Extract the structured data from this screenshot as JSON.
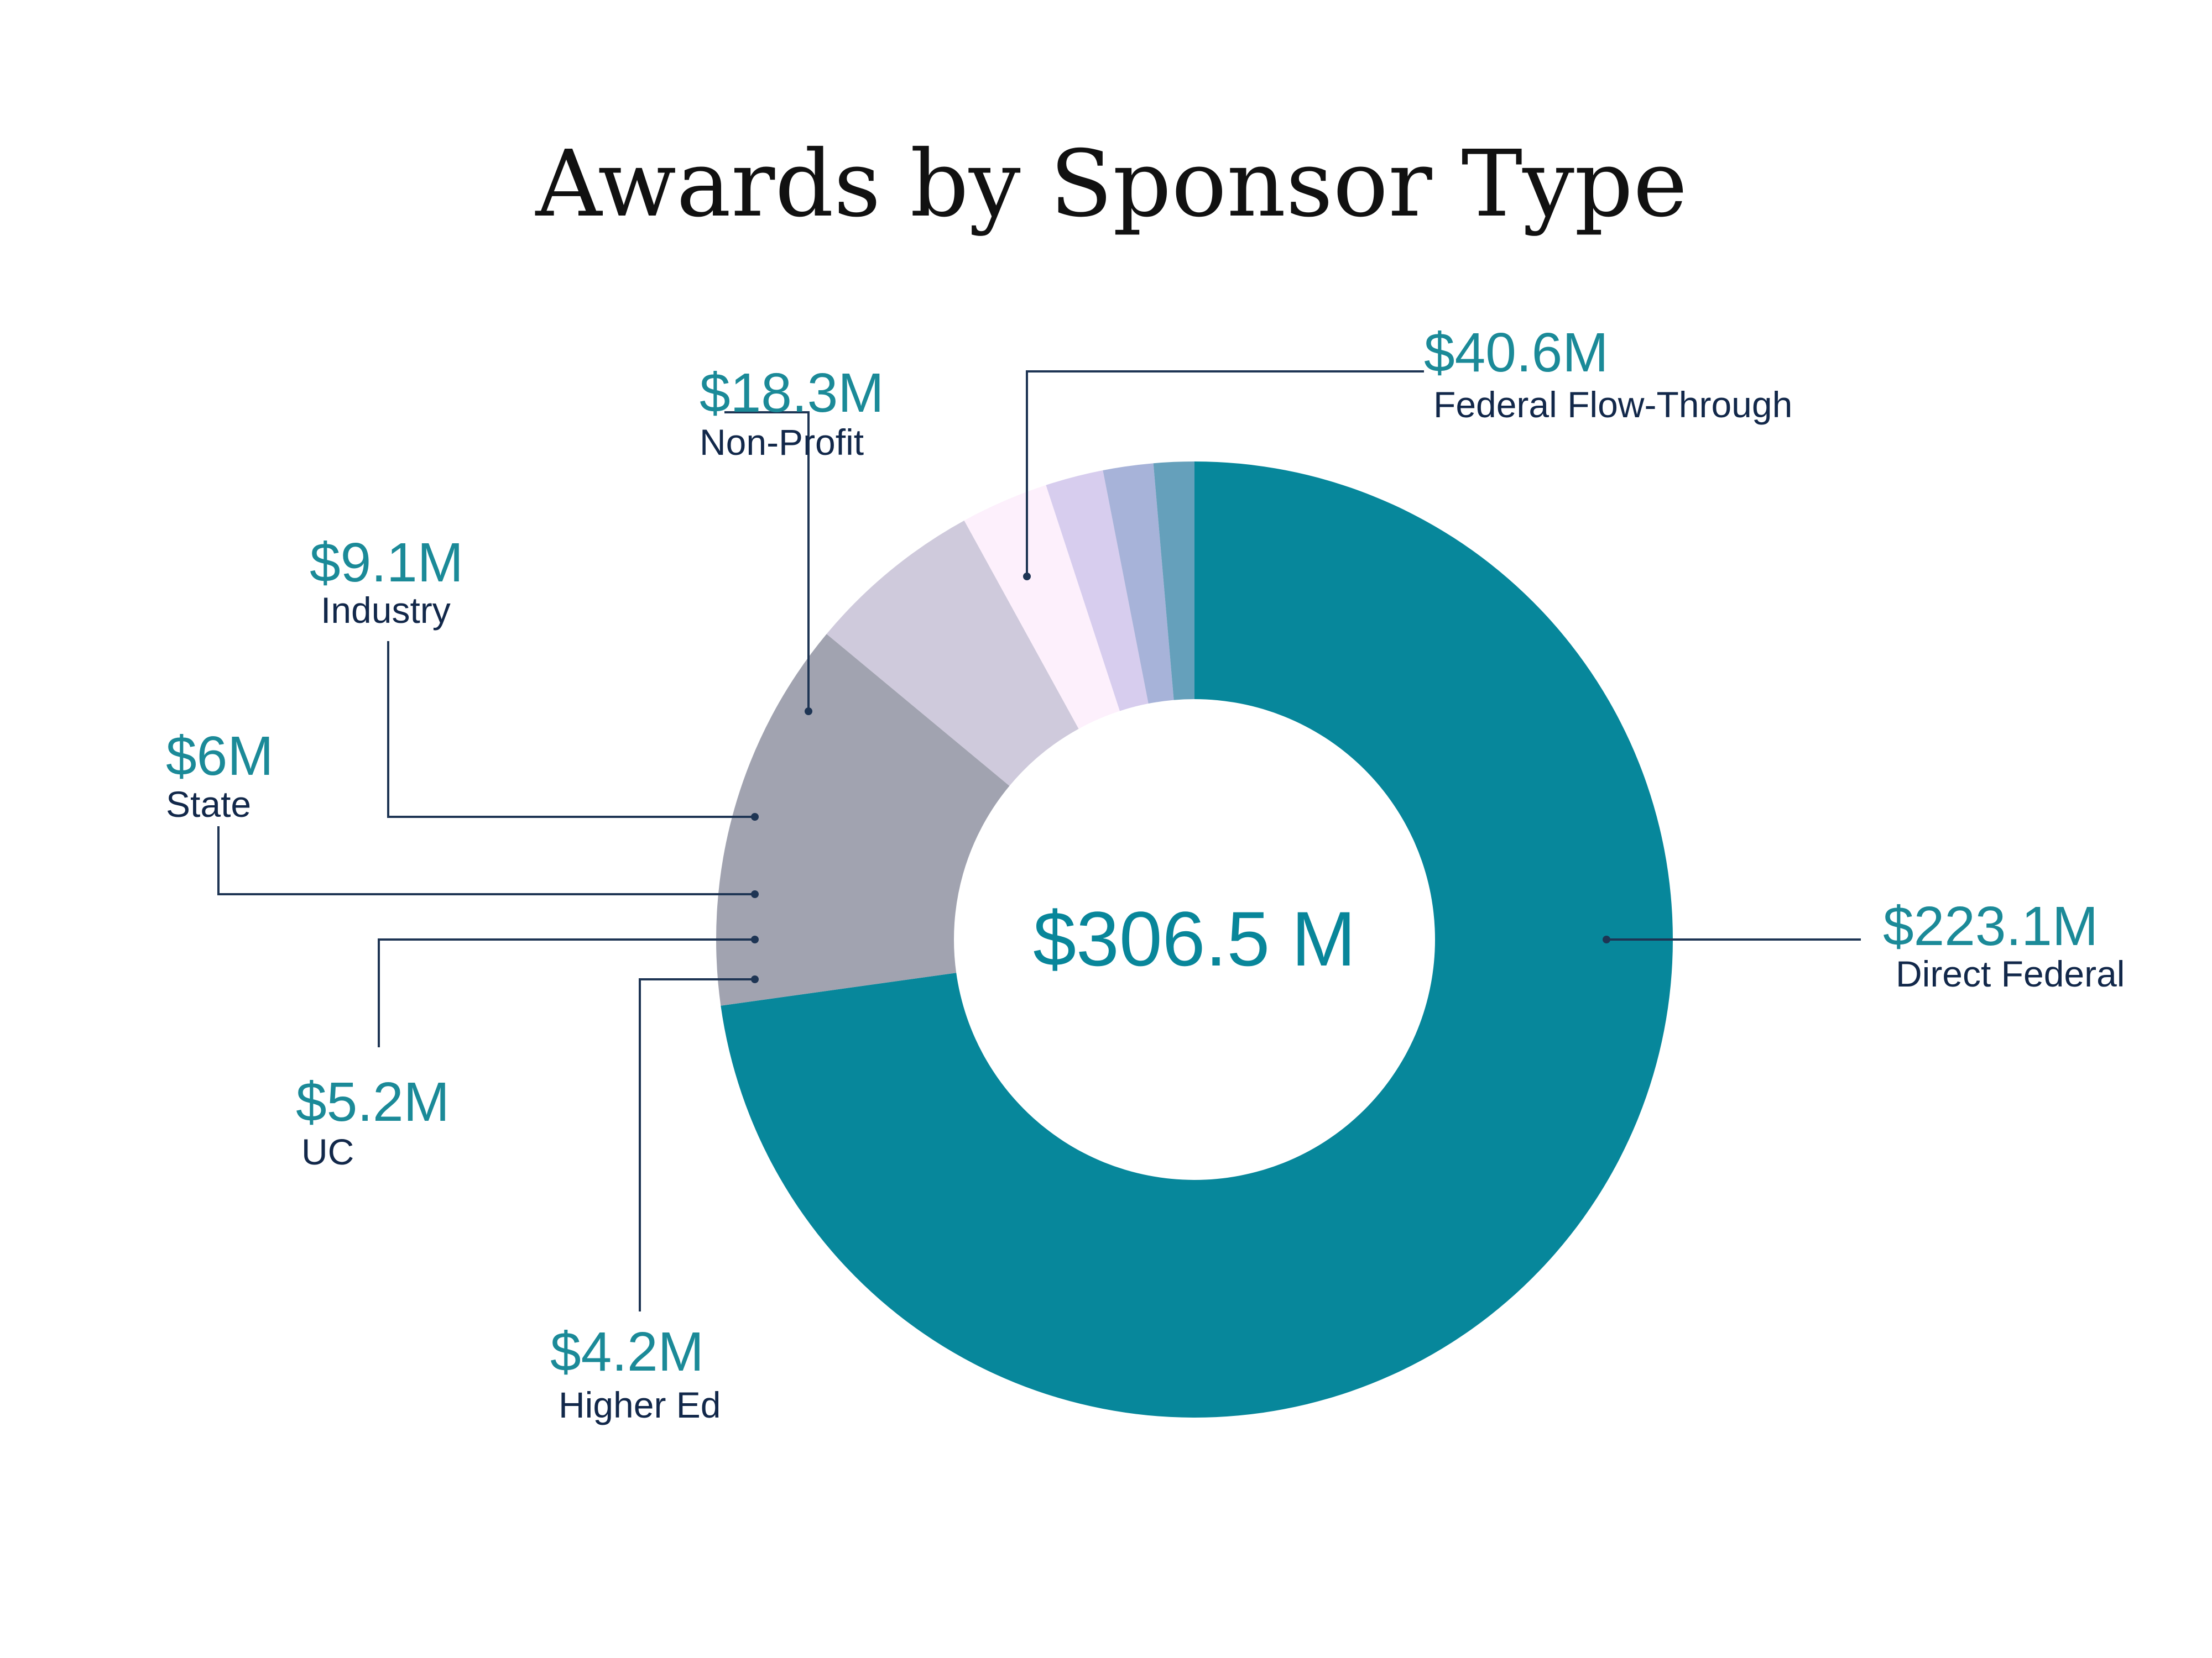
{
  "chart_data": {
    "type": "pie",
    "title": "Awards by Sponsor Type",
    "center_label": "$306.5 M",
    "slices": [
      {
        "name": "Direct Federal",
        "value": 223.1,
        "label": "$223.1M",
        "color": "#07879b"
      },
      {
        "name": "Federal Flow-Through",
        "value": 40.6,
        "label": "$40.6M",
        "color": "#a1a3b0"
      },
      {
        "name": "Non-Profit",
        "value": 18.3,
        "label": "$18.3M",
        "color": "#cfcadc"
      },
      {
        "name": "Industry",
        "value": 9.1,
        "label": "$9.1M",
        "color": "#fdf0fc"
      },
      {
        "name": "State",
        "value": 6.0,
        "label": "$6M",
        "color": "#d7cdee"
      },
      {
        "name": "UC",
        "value": 5.2,
        "label": "$5.2M",
        "color": "#a7b3d9"
      },
      {
        "name": "Higher Ed",
        "value": 4.2,
        "label": "$4.2M",
        "color": "#65a0bb"
      }
    ]
  }
}
